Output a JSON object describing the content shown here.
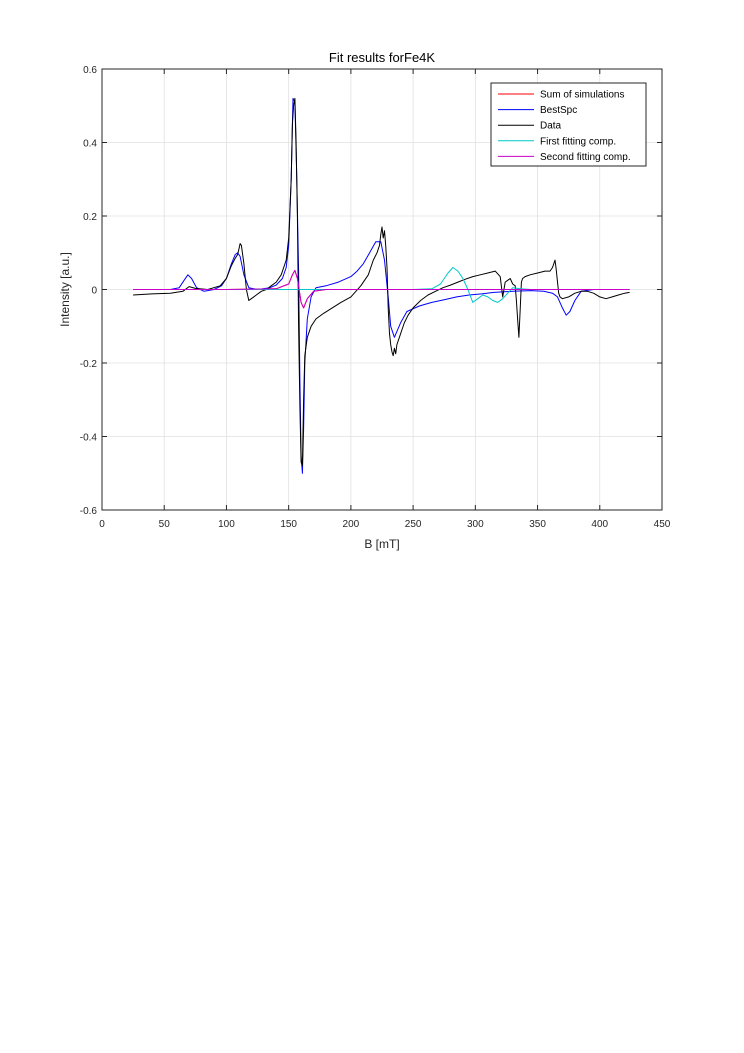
{
  "chart_data": {
    "type": "line",
    "title": "Fit results forFe4K",
    "xlabel": "B [mT]",
    "ylabel": "Intensity [a.u.]",
    "xlim": [
      0,
      450
    ],
    "ylim": [
      -0.6,
      0.6
    ],
    "xticks": [
      0,
      50,
      100,
      150,
      200,
      250,
      300,
      350,
      400,
      450
    ],
    "xtick_labels": [
      "0",
      "50",
      "100",
      "150",
      "200",
      "250",
      "300",
      "350",
      "400",
      "450"
    ],
    "yticks": [
      -0.6,
      -0.4,
      -0.2,
      0,
      0.2,
      0.4,
      0.6
    ],
    "ytick_labels": [
      "-0.6",
      "-0.4",
      "-0.2",
      "0",
      "0.2",
      "0.4",
      "0.6"
    ],
    "grid": true,
    "legend_position": "top-right",
    "series": [
      {
        "name": "Sum of simulations",
        "color": "#ff0000",
        "x": [
          25,
          100,
          140,
          150,
          153,
          155,
          157,
          160,
          162,
          165,
          170,
          180,
          200,
          250,
          300,
          350,
          424
        ],
        "y": [
          0,
          0,
          0.002,
          0.015,
          0.04,
          0.052,
          0.03,
          -0.035,
          -0.05,
          -0.025,
          -0.005,
          0,
          0,
          0,
          0,
          0,
          0
        ]
      },
      {
        "name": "BestSpc",
        "color": "#0000ff",
        "x": [
          25,
          55,
          62,
          66,
          69,
          72,
          76,
          82,
          90,
          96,
          100,
          104,
          107,
          109,
          111,
          114,
          118,
          125,
          135,
          140,
          145,
          148,
          150,
          152,
          153.5,
          155,
          156.5,
          158,
          159,
          160,
          161,
          162,
          163,
          165,
          168,
          172,
          180,
          190,
          200,
          205,
          210,
          215,
          220,
          224,
          227,
          230,
          232,
          235,
          240,
          245,
          255,
          265,
          275,
          285,
          295,
          305,
          315,
          330,
          345,
          355,
          362,
          366,
          370,
          373,
          376,
          380,
          385,
          395,
          410,
          424
        ],
        "y": [
          0,
          0,
          0.005,
          0.025,
          0.04,
          0.03,
          0.005,
          -0.005,
          0,
          0.01,
          0.03,
          0.07,
          0.095,
          0.1,
          0.09,
          0.04,
          0.005,
          0,
          0.005,
          0.012,
          0.03,
          0.06,
          0.12,
          0.3,
          0.52,
          0.51,
          0.3,
          0.05,
          -0.25,
          -0.45,
          -0.5,
          -0.38,
          -0.2,
          -0.08,
          -0.02,
          0.005,
          0.01,
          0.02,
          0.035,
          0.05,
          0.07,
          0.1,
          0.13,
          0.13,
          0.08,
          -0.02,
          -0.1,
          -0.13,
          -0.09,
          -0.06,
          -0.045,
          -0.035,
          -0.028,
          -0.02,
          -0.015,
          -0.012,
          -0.008,
          -0.005,
          -0.003,
          -0.005,
          -0.01,
          -0.02,
          -0.05,
          -0.07,
          -0.06,
          -0.03,
          -0.005,
          0,
          0,
          0
        ]
      },
      {
        "name": "Data",
        "color": "#000000",
        "x": [
          25,
          40,
          55,
          65,
          70,
          75,
          85,
          95,
          100,
          104,
          107,
          109,
          110,
          111,
          112,
          114,
          116,
          118,
          120,
          124,
          128,
          132,
          136,
          140,
          144,
          148,
          150,
          152,
          153,
          154,
          155,
          156,
          157,
          158,
          159,
          160,
          161,
          162,
          163,
          165,
          168,
          172,
          178,
          185,
          192,
          200,
          208,
          214,
          218,
          221,
          223,
          224,
          225,
          226,
          227,
          228,
          229,
          230,
          231,
          232,
          233,
          234,
          235,
          236,
          237,
          239,
          241,
          243,
          246,
          250,
          256,
          262,
          268,
          274,
          280,
          286,
          292,
          298,
          304,
          310,
          316,
          320,
          322,
          324,
          326,
          328,
          330,
          332,
          333,
          334,
          335,
          336,
          337,
          338,
          340,
          344,
          350,
          356,
          360,
          362,
          364,
          365,
          366,
          367,
          368,
          370,
          375,
          380,
          385,
          390,
          395,
          400,
          405,
          410,
          415,
          420,
          424
        ],
        "y": [
          -0.015,
          -0.012,
          -0.01,
          -0.005,
          0.008,
          0.003,
          0,
          0.01,
          0.03,
          0.065,
          0.085,
          0.095,
          0.11,
          0.125,
          0.12,
          0.07,
          0,
          -0.03,
          -0.025,
          -0.015,
          -0.005,
          0,
          0.01,
          0.02,
          0.04,
          0.08,
          0.14,
          0.3,
          0.45,
          0.5,
          0.52,
          0.4,
          0.2,
          -0.1,
          -0.32,
          -0.47,
          -0.48,
          -0.3,
          -0.18,
          -0.13,
          -0.1,
          -0.08,
          -0.065,
          -0.05,
          -0.035,
          -0.02,
          0.01,
          0.04,
          0.08,
          0.1,
          0.12,
          0.15,
          0.17,
          0.14,
          0.16,
          0.12,
          0.06,
          -0.05,
          -0.12,
          -0.15,
          -0.17,
          -0.18,
          -0.16,
          -0.175,
          -0.15,
          -0.13,
          -0.11,
          -0.09,
          -0.07,
          -0.05,
          -0.03,
          -0.015,
          -0.005,
          0.005,
          0.012,
          0.02,
          0.028,
          0.035,
          0.04,
          0.045,
          0.05,
          0.035,
          -0.02,
          0.02,
          0.025,
          0.03,
          0.015,
          0.01,
          -0.03,
          -0.08,
          -0.13,
          -0.06,
          0.02,
          0.03,
          0.035,
          0.04,
          0.045,
          0.05,
          0.05,
          0.06,
          0.08,
          0.055,
          0.02,
          -0.01,
          -0.02,
          -0.025,
          -0.02,
          -0.01,
          -0.005,
          -0.005,
          -0.01,
          -0.02,
          -0.025,
          -0.02,
          -0.015,
          -0.01,
          -0.008
        ]
      },
      {
        "name": "First fitting comp.",
        "color": "#00c8c8",
        "x": [
          25,
          250,
          265,
          272,
          278,
          282,
          286,
          290,
          294,
          298,
          302,
          306,
          310,
          314,
          318,
          322,
          326,
          330,
          336,
          345,
          360,
          424
        ],
        "y": [
          0,
          0,
          0.002,
          0.015,
          0.045,
          0.06,
          0.05,
          0.03,
          0,
          -0.035,
          -0.025,
          -0.015,
          -0.02,
          -0.03,
          -0.035,
          -0.025,
          -0.01,
          0.005,
          0.002,
          0,
          0,
          0
        ]
      },
      {
        "name": "Second fitting comp.",
        "color": "#c800c8",
        "x": [
          25,
          100,
          140,
          150,
          153,
          155,
          157,
          160,
          162,
          165,
          170,
          180,
          200,
          250,
          300,
          350,
          424
        ],
        "y": [
          0,
          0,
          0.002,
          0.015,
          0.04,
          0.052,
          0.03,
          -0.035,
          -0.05,
          -0.025,
          -0.005,
          0,
          0,
          0,
          0,
          0,
          0
        ]
      }
    ]
  }
}
